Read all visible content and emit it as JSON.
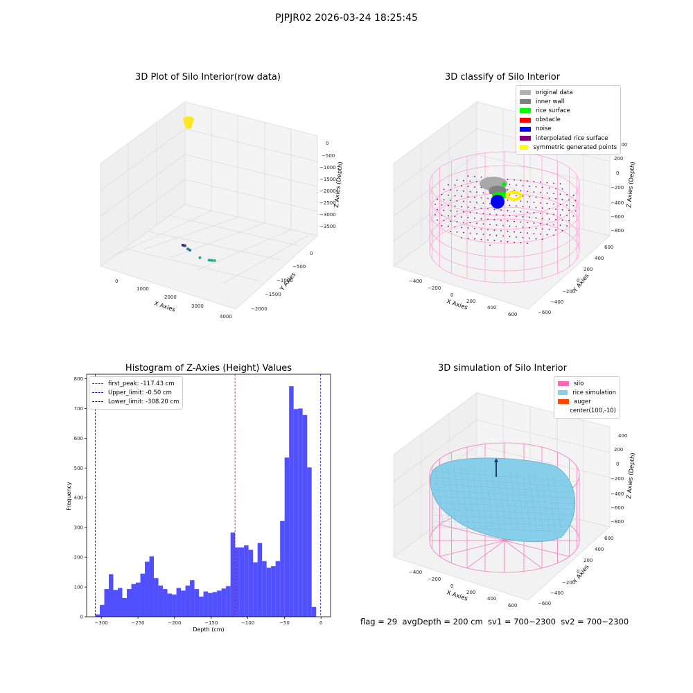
{
  "suptitle": "PJPJR02 2026-03-24 18:25:45",
  "footer": "flag = 29  avgDepth = 200 cm  sv1 = 700~2300  sv2 = 700~2300",
  "chart_data": [
    {
      "type": "scatter",
      "title": "3D Plot of Silo Interior(row data)",
      "xlabel": "X Axies",
      "ylabel": "Y Axies",
      "zlabel": "Z Axies (Depth)",
      "x_ticks": [
        "0",
        "1000",
        "2000",
        "3000",
        "4000"
      ],
      "y_ticks": [
        "0",
        "−500",
        "−1000",
        "−1500",
        "−2000"
      ],
      "z_ticks": [
        "0",
        "−500",
        "−1000",
        "−1500",
        "−2000",
        "−2500",
        "−3000",
        "−3500"
      ],
      "points": [
        {
          "x": 650,
          "y": -1550,
          "z": -3650,
          "color": "#472c7a"
        },
        {
          "x": 780,
          "y": -1480,
          "z": -3600,
          "color": "#472c7a"
        },
        {
          "x": 900,
          "y": -1420,
          "z": -3550,
          "color": "#3e4a89"
        },
        {
          "x": 1400,
          "y": -1100,
          "z": -3400,
          "color": "#2a788e"
        },
        {
          "x": 1600,
          "y": -1000,
          "z": -3350,
          "color": "#2a788e"
        },
        {
          "x": 2600,
          "y": -500,
          "z": -3150,
          "color": "#22a884"
        },
        {
          "x": 3200,
          "y": -300,
          "z": -3000,
          "color": "#22a884"
        },
        {
          "x": 3350,
          "y": -250,
          "z": -2950,
          "color": "#22a884"
        },
        {
          "x": 3500,
          "y": -200,
          "z": -2900,
          "color": "#3bbb75"
        },
        {
          "x": 3600,
          "y": -150,
          "z": -2850,
          "color": "#44bf70"
        },
        {
          "x": 100,
          "y": 0,
          "z": 0,
          "color": "#fde725"
        }
      ]
    },
    {
      "type": "scatter",
      "title": "3D classify of Silo Interior",
      "xlabel": "X Axies",
      "ylabel": "Y Axies",
      "zlabel": "Z Axies (Depth)",
      "x_ticks": [
        "−400",
        "−200",
        "0",
        "200",
        "400",
        "600"
      ],
      "y_ticks": [
        "600",
        "400",
        "200",
        "0",
        "−200",
        "−400",
        "−600"
      ],
      "z_ticks": [
        "400",
        "200",
        "0",
        "−200",
        "−400",
        "−600",
        "−800"
      ],
      "legend": [
        {
          "label": "original data",
          "color": "#b3b3b3"
        },
        {
          "label": "inner wall",
          "color": "#808080"
        },
        {
          "label": "rice surface",
          "color": "#00ff00"
        },
        {
          "label": "obstacle",
          "color": "#ff0000"
        },
        {
          "label": "noise",
          "color": "#0000ff"
        },
        {
          "label": "interpolated rice surface",
          "color": "#800080"
        },
        {
          "label": "symmetric generated points",
          "color": "#ffff00"
        }
      ]
    },
    {
      "type": "bar",
      "title": "Histogram of Z-Axies (Height) Values",
      "xlabel": "Depth (cm)",
      "ylabel": "Frequency",
      "xlim": [
        -320,
        13
      ],
      "ylim": [
        0,
        815
      ],
      "x_ticks": [
        -300,
        -250,
        -200,
        -150,
        -100,
        -50,
        0
      ],
      "y_ticks": [
        0,
        100,
        200,
        300,
        400,
        500,
        600,
        700,
        800
      ],
      "bin_start": -308.2,
      "bin_width": 6.154,
      "values": [
        8,
        40,
        93,
        143,
        90,
        97,
        63,
        93,
        110,
        115,
        145,
        185,
        203,
        130,
        105,
        93,
        78,
        75,
        97,
        88,
        105,
        123,
        93,
        68,
        85,
        80,
        83,
        88,
        95,
        103,
        283,
        233,
        233,
        240,
        225,
        183,
        248,
        187,
        165,
        170,
        187,
        322,
        535,
        775,
        698,
        700,
        678,
        502,
        33
      ],
      "color": "#5050ff",
      "vlines": [
        {
          "label": "first_peak: -117.43 cm",
          "x": -117.43,
          "color": "#ff0000"
        },
        {
          "label": "Upper_limit: -0.50 cm",
          "x": -0.5,
          "color": "#0000cc"
        },
        {
          "label": "Lower_limit: -308.20 cm",
          "x": -308.2,
          "color": "#0000cc"
        }
      ]
    },
    {
      "type": "scatter",
      "title": "3D simulation of Silo Interior",
      "xlabel": "X Axies",
      "ylabel": "Y Axies",
      "zlabel": "Z Axies (Depth)",
      "x_ticks": [
        "−400",
        "−200",
        "0",
        "200",
        "400",
        "600"
      ],
      "y_ticks": [
        "600",
        "400",
        "200",
        "0",
        "−200",
        "−400",
        "−600"
      ],
      "z_ticks": [
        "400",
        "200",
        "0",
        "−200",
        "−400",
        "−600",
        "−800"
      ],
      "legend": [
        {
          "label": "silo",
          "color": "#ff69b4"
        },
        {
          "label": "rice simulation",
          "color": "#87ceeb"
        },
        {
          "label": "auger",
          "color": "#ff4500"
        },
        {
          "label": "center(100,-10)",
          "color": "none"
        }
      ]
    }
  ]
}
